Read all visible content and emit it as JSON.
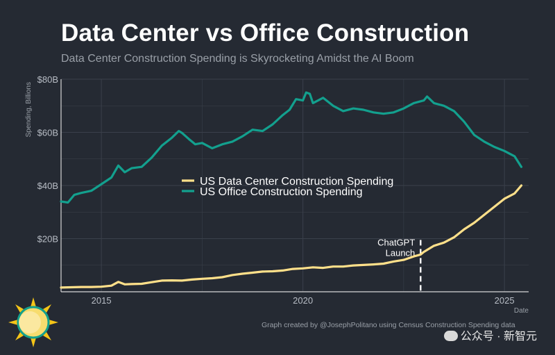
{
  "header": {
    "title": "Data Center vs Office Construction",
    "subtitle": "Data Center Construction Spending is Skyrocketing Amidst the AI Boom"
  },
  "footer": {
    "caption": "Graph created by @JosephPolitano using Census Construction Spending data",
    "watermark": "公众号 · 新智元",
    "logo_icon": "sun-logo-icon"
  },
  "colors": {
    "background": "#252a33",
    "grid": "#3a404b",
    "axis": "#d8d8d8",
    "data_center": "#ffe08a",
    "office": "#13a08e",
    "annotation": "#ffffff"
  },
  "chart_data": {
    "type": "line",
    "title": "Data Center vs Office Construction",
    "subtitle": "Data Center Construction Spending is Skyrocketing Amidst the AI Boom",
    "xlabel": "Date",
    "ylabel": "Spending, Billions",
    "xlim": [
      2014.0,
      2025.6
    ],
    "ylim": [
      0,
      80
    ],
    "x_ticks": [
      2015,
      2020,
      2025
    ],
    "x_tick_labels": [
      "2015",
      "2020",
      "2025"
    ],
    "y_ticks": [
      20,
      40,
      60,
      80
    ],
    "y_tick_labels": [
      "$20B",
      "$40B",
      "$60B",
      "$80B"
    ],
    "grid": true,
    "legend_position": "center-left",
    "annotation": {
      "x": 2022.92,
      "text_lines": [
        "ChatGPT",
        "Launch"
      ]
    },
    "series": [
      {
        "name": "US Data Center Construction Spending",
        "color": "#ffe08a",
        "points": [
          [
            2014.0,
            1.6
          ],
          [
            2014.25,
            1.7
          ],
          [
            2014.5,
            1.8
          ],
          [
            2014.75,
            1.8
          ],
          [
            2015.0,
            1.9
          ],
          [
            2015.25,
            2.3
          ],
          [
            2015.42,
            3.7
          ],
          [
            2015.58,
            2.8
          ],
          [
            2015.75,
            2.9
          ],
          [
            2016.0,
            3.0
          ],
          [
            2016.25,
            3.6
          ],
          [
            2016.5,
            4.2
          ],
          [
            2016.75,
            4.3
          ],
          [
            2017.0,
            4.2
          ],
          [
            2017.25,
            4.6
          ],
          [
            2017.5,
            4.9
          ],
          [
            2017.75,
            5.1
          ],
          [
            2018.0,
            5.5
          ],
          [
            2018.25,
            6.3
          ],
          [
            2018.5,
            6.8
          ],
          [
            2018.75,
            7.2
          ],
          [
            2019.0,
            7.6
          ],
          [
            2019.25,
            7.7
          ],
          [
            2019.5,
            8.0
          ],
          [
            2019.75,
            8.6
          ],
          [
            2020.0,
            8.8
          ],
          [
            2020.25,
            9.2
          ],
          [
            2020.5,
            9.0
          ],
          [
            2020.75,
            9.5
          ],
          [
            2021.0,
            9.5
          ],
          [
            2021.25,
            9.9
          ],
          [
            2021.5,
            10.1
          ],
          [
            2021.75,
            10.3
          ],
          [
            2022.0,
            10.6
          ],
          [
            2022.25,
            11.4
          ],
          [
            2022.5,
            12.0
          ],
          [
            2022.75,
            13.3
          ],
          [
            2022.92,
            14.0
          ],
          [
            2023.0,
            15.0
          ],
          [
            2023.25,
            17.3
          ],
          [
            2023.5,
            18.5
          ],
          [
            2023.75,
            20.5
          ],
          [
            2024.0,
            23.5
          ],
          [
            2024.25,
            26.0
          ],
          [
            2024.5,
            29.0
          ],
          [
            2024.75,
            32.0
          ],
          [
            2025.0,
            35.0
          ],
          [
            2025.25,
            37.0
          ],
          [
            2025.42,
            40.0
          ]
        ]
      },
      {
        "name": "US Office Construction Spending",
        "color": "#13a08e",
        "points": [
          [
            2014.0,
            34.0
          ],
          [
            2014.17,
            33.6
          ],
          [
            2014.33,
            36.5
          ],
          [
            2014.5,
            37.2
          ],
          [
            2014.75,
            38.0
          ],
          [
            2015.0,
            40.5
          ],
          [
            2015.25,
            43.0
          ],
          [
            2015.42,
            47.5
          ],
          [
            2015.58,
            45.0
          ],
          [
            2015.75,
            46.5
          ],
          [
            2016.0,
            47.0
          ],
          [
            2016.25,
            50.5
          ],
          [
            2016.5,
            55.0
          ],
          [
            2016.75,
            58.0
          ],
          [
            2016.92,
            60.5
          ],
          [
            2017.0,
            59.8
          ],
          [
            2017.17,
            57.5
          ],
          [
            2017.33,
            55.5
          ],
          [
            2017.5,
            56.0
          ],
          [
            2017.75,
            54.0
          ],
          [
            2018.0,
            55.5
          ],
          [
            2018.25,
            56.5
          ],
          [
            2018.5,
            58.5
          ],
          [
            2018.75,
            61.0
          ],
          [
            2019.0,
            60.5
          ],
          [
            2019.25,
            63.0
          ],
          [
            2019.5,
            66.5
          ],
          [
            2019.67,
            68.5
          ],
          [
            2019.83,
            72.5
          ],
          [
            2020.0,
            72.0
          ],
          [
            2020.08,
            75.0
          ],
          [
            2020.17,
            74.5
          ],
          [
            2020.25,
            71.0
          ],
          [
            2020.5,
            73.0
          ],
          [
            2020.75,
            70.0
          ],
          [
            2021.0,
            68.0
          ],
          [
            2021.25,
            69.0
          ],
          [
            2021.5,
            68.5
          ],
          [
            2021.75,
            67.5
          ],
          [
            2022.0,
            67.0
          ],
          [
            2022.25,
            67.5
          ],
          [
            2022.5,
            69.0
          ],
          [
            2022.75,
            71.0
          ],
          [
            2023.0,
            72.0
          ],
          [
            2023.08,
            73.5
          ],
          [
            2023.25,
            71.0
          ],
          [
            2023.5,
            70.0
          ],
          [
            2023.75,
            68.0
          ],
          [
            2024.0,
            64.0
          ],
          [
            2024.25,
            59.0
          ],
          [
            2024.5,
            56.5
          ],
          [
            2024.75,
            54.5
          ],
          [
            2025.0,
            53.0
          ],
          [
            2025.25,
            51.0
          ],
          [
            2025.42,
            47.0
          ]
        ]
      }
    ]
  }
}
